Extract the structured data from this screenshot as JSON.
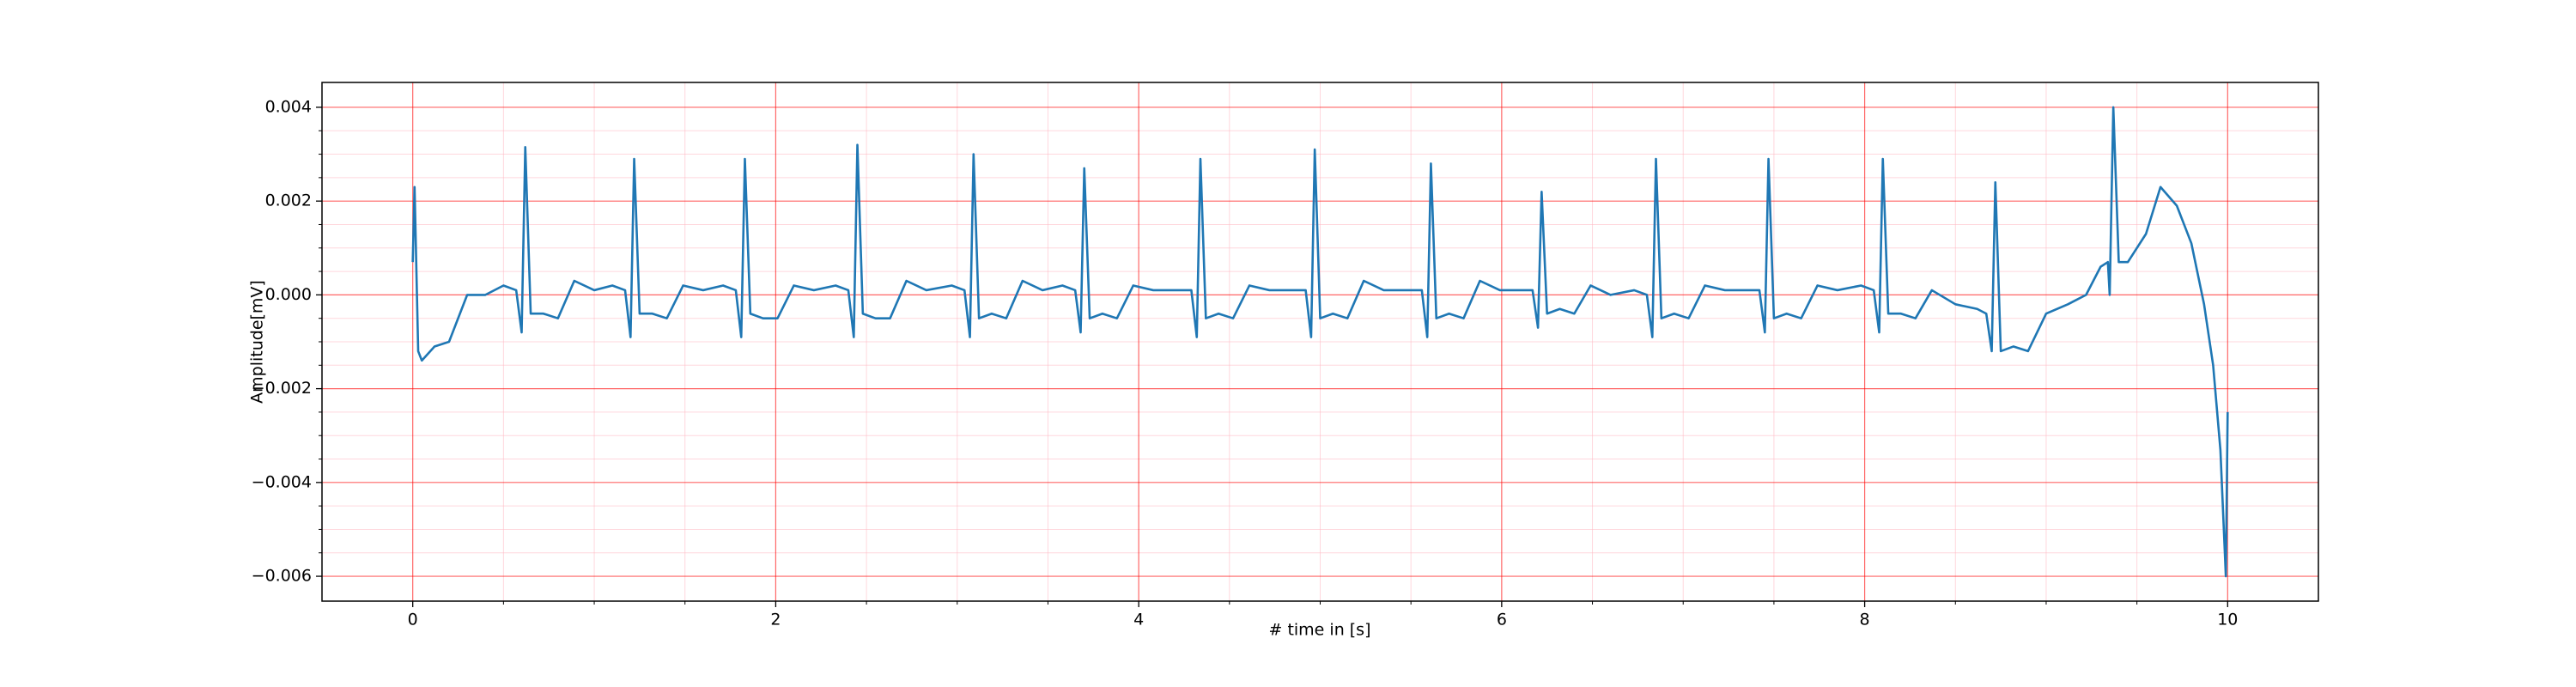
{
  "chart_data": {
    "type": "line",
    "xlabel": "# time in [s]",
    "ylabel": "Amplitude[mV]",
    "color": "#1f77b4",
    "grid": true,
    "minor_grid": true,
    "grid_color": "#ff0000",
    "minor_grid_color": "#ffb6c1",
    "xlim": [
      -0.5,
      10.5
    ],
    "ylim": [
      -0.00653,
      0.00453
    ],
    "xticks": [
      0,
      2,
      4,
      6,
      8,
      10
    ],
    "yticks": [
      {
        "value": -0.006,
        "label": "−0.006"
      },
      {
        "value": -0.004,
        "label": "−0.004"
      },
      {
        "value": -0.002,
        "label": "−0.002"
      },
      {
        "value": 0,
        "label": "0.000"
      },
      0.002,
      0.004
    ],
    "xminorticks": [
      0.5,
      1,
      1.5,
      2.5,
      3,
      3.5,
      4.5,
      5,
      5.5,
      6.5,
      7,
      7.5,
      8.5,
      9,
      9.5
    ],
    "yminorticks": [
      0.0035,
      0.003,
      0.0025,
      0.0015,
      0.001,
      0.0005,
      -0.0005,
      -0.001,
      -0.0015,
      -0.0025,
      -0.003,
      -0.0035,
      -0.0045,
      -0.005,
      -0.0055
    ],
    "x": [
      0,
      0.01,
      0.03,
      0.05,
      0.12,
      0.2,
      0.3,
      0.4,
      0.5,
      0.57,
      0.6,
      0.62,
      0.65,
      0.72,
      0.8,
      0.89,
      1.0,
      1.1,
      1.17,
      1.2,
      1.22,
      1.25,
      1.32,
      1.4,
      1.49,
      1.6,
      1.71,
      1.78,
      1.81,
      1.83,
      1.86,
      1.93,
      2.01,
      2.1,
      2.21,
      2.33,
      2.4,
      2.43,
      2.45,
      2.48,
      2.55,
      2.63,
      2.72,
      2.83,
      2.97,
      3.04,
      3.07,
      3.09,
      3.12,
      3.19,
      3.27,
      3.36,
      3.47,
      3.58,
      3.65,
      3.68,
      3.7,
      3.73,
      3.8,
      3.88,
      3.97,
      4.08,
      4.22,
      4.29,
      4.32,
      4.34,
      4.37,
      4.44,
      4.52,
      4.61,
      4.72,
      4.85,
      4.92,
      4.95,
      4.97,
      5.0,
      5.07,
      5.15,
      5.24,
      5.35,
      5.49,
      5.56,
      5.59,
      5.61,
      5.64,
      5.71,
      5.79,
      5.88,
      5.99,
      6.1,
      6.17,
      6.2,
      6.22,
      6.25,
      6.32,
      6.4,
      6.49,
      6.6,
      6.73,
      6.8,
      6.83,
      6.85,
      6.88,
      6.95,
      7.03,
      7.12,
      7.23,
      7.35,
      7.42,
      7.45,
      7.47,
      7.5,
      7.57,
      7.65,
      7.74,
      7.85,
      7.98,
      8.05,
      8.08,
      8.1,
      8.13,
      8.2,
      8.28,
      8.37,
      8.5,
      8.62,
      8.67,
      8.7,
      8.72,
      8.75,
      8.82,
      8.9,
      9.0,
      9.12,
      9.22,
      9.3,
      9.34,
      9.35,
      9.37,
      9.4,
      9.45,
      9.55,
      9.63,
      9.72,
      9.8,
      9.87,
      9.92,
      9.96,
      9.99,
      10.0
    ],
    "values": [
      0.0007,
      0.0023,
      -0.0012,
      -0.0014,
      -0.0011,
      -0.001,
      0.0,
      0.0,
      0.0002,
      0.0001,
      -0.0008,
      0.00315,
      -0.0004,
      -0.0004,
      -0.0005,
      0.0003,
      0.0001,
      0.0002,
      0.0001,
      -0.0009,
      0.0029,
      -0.0004,
      -0.0004,
      -0.0005,
      0.0002,
      0.0001,
      0.0002,
      0.0001,
      -0.0009,
      0.0029,
      -0.0004,
      -0.0005,
      -0.0005,
      0.0002,
      0.0001,
      0.0002,
      0.0001,
      -0.0009,
      0.0032,
      -0.0004,
      -0.0005,
      -0.0005,
      0.0003,
      0.0001,
      0.0002,
      0.0001,
      -0.0009,
      0.003,
      -0.0005,
      -0.0004,
      -0.0005,
      0.0003,
      0.0001,
      0.0002,
      0.0001,
      -0.0008,
      0.0027,
      -0.0005,
      -0.0004,
      -0.0005,
      0.0002,
      0.0001,
      0.0001,
      0.0001,
      -0.0009,
      0.0029,
      -0.0005,
      -0.0004,
      -0.0005,
      0.0002,
      0.0001,
      0.0001,
      0.0001,
      -0.0009,
      0.0031,
      -0.0005,
      -0.0004,
      -0.0005,
      0.0003,
      0.0001,
      0.0001,
      0.0001,
      -0.0009,
      0.0028,
      -0.0005,
      -0.0004,
      -0.0005,
      0.0003,
      0.0001,
      0.0001,
      0.0001,
      -0.0007,
      0.0022,
      -0.0004,
      -0.0003,
      -0.0004,
      0.0002,
      0.0,
      0.0001,
      0.0,
      -0.0009,
      0.0029,
      -0.0005,
      -0.0004,
      -0.0005,
      0.0002,
      0.0001,
      0.0001,
      0.0001,
      -0.0008,
      0.0029,
      -0.0005,
      -0.0004,
      -0.0005,
      0.0002,
      0.0001,
      0.0002,
      0.0001,
      -0.0008,
      0.0029,
      -0.0004,
      -0.0004,
      -0.0005,
      0.0001,
      -0.0002,
      -0.0003,
      -0.0004,
      -0.0012,
      0.0024,
      -0.0012,
      -0.0011,
      -0.0012,
      -0.0004,
      -0.0002,
      0.0,
      0.0006,
      0.0007,
      0.0,
      0.004,
      0.0007,
      0.0007,
      0.0013,
      0.0023,
      0.0019,
      0.0011,
      -0.0002,
      -0.0015,
      -0.0033,
      -0.006,
      -0.0025
    ]
  }
}
